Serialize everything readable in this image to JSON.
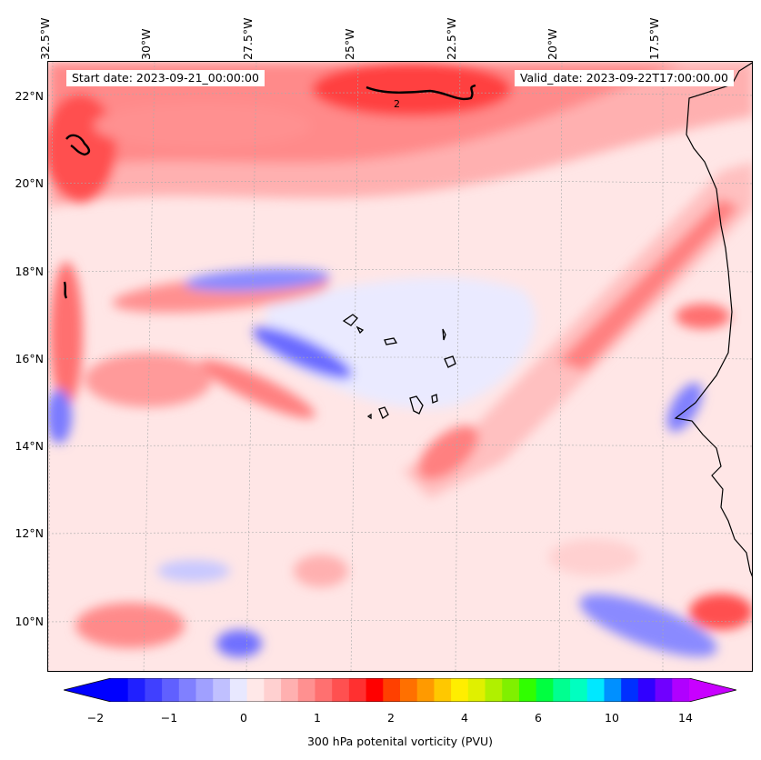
{
  "map": {
    "start_date_label": "Start date: 2023-09-21_00:00:00",
    "valid_date_label": "Valid_date: 2023-09-22T17:00:00.00",
    "longitude_labels": [
      "32.5°W",
      "30°W",
      "27.5°W",
      "25°W",
      "22.5°W",
      "20°W",
      "17.5°W"
    ],
    "latitude_labels": [
      "22°N",
      "20°N",
      "18°N",
      "16°N",
      "14°N",
      "12°N",
      "10°N"
    ],
    "contour_label": "2",
    "gridlines": true,
    "features": [
      "coastline-west-africa",
      "cape-verde-islands"
    ]
  },
  "colorbar": {
    "title": "300 hPa potenital vorticity (PVU)",
    "tick_labels": [
      "−2",
      "−1",
      "0",
      "1",
      "2",
      "4",
      "6",
      "10",
      "14"
    ],
    "extend": "both",
    "colors": [
      "#0000ff",
      "#2020ff",
      "#4040ff",
      "#6060ff",
      "#8080ff",
      "#a0a0ff",
      "#c0c0ff",
      "#e8e8ff",
      "#ffe8e8",
      "#ffd0d0",
      "#ffb0b0",
      "#ff9090",
      "#ff7070",
      "#ff5050",
      "#ff3030",
      "#ff0000",
      "#ff4000",
      "#ff7000",
      "#ff9a00",
      "#ffc800",
      "#ffee00",
      "#e0f000",
      "#b0f000",
      "#80f000",
      "#30ff00",
      "#00ff40",
      "#00ff90",
      "#00ffc0",
      "#00e8ff",
      "#0090ff",
      "#0030ff",
      "#3000ff",
      "#7000ff",
      "#b000ff"
    ],
    "under_color": "#0000ff",
    "over_color": "#c800ff"
  }
}
